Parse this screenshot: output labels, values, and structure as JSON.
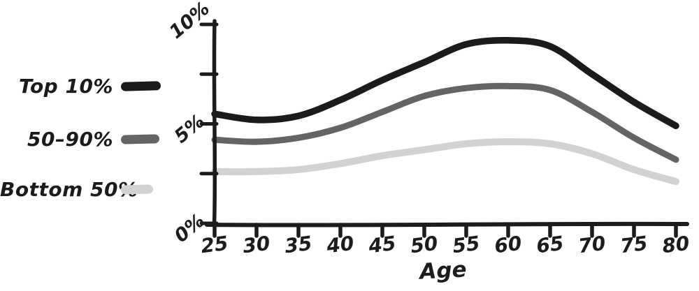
{
  "canvas": {
    "background": "#ffffff"
  },
  "legend": {
    "position": "left",
    "items": [
      {
        "label": "Top 10%",
        "color": "#1b1b1b"
      },
      {
        "label": "50–90%",
        "color": "#646464"
      },
      {
        "label": "Bottom 50%",
        "color": "#d2d2d2"
      }
    ]
  },
  "chart_data": {
    "type": "line",
    "title": "",
    "xlabel": "Age",
    "ylabel": "",
    "style": "hand-drawn sketch",
    "grid": false,
    "legend_position": "left",
    "xlim": [
      25,
      80
    ],
    "ylim": [
      0,
      10
    ],
    "x": [
      25,
      30,
      35,
      40,
      45,
      50,
      55,
      60,
      65,
      70,
      75,
      80
    ],
    "x_tick_labels": [
      "25",
      "30",
      "35",
      "40",
      "45",
      "50",
      "55",
      "60",
      "65",
      "70",
      "75",
      "80"
    ],
    "y_ticks": [
      {
        "value": 0,
        "label": "0%"
      },
      {
        "value": 2.5,
        "label": ""
      },
      {
        "value": 5,
        "label": "5%"
      },
      {
        "value": 7.5,
        "label": ""
      },
      {
        "value": 10,
        "label": "10%"
      }
    ],
    "axis_color": "#1c1c1c",
    "series": [
      {
        "name": "Top 10%",
        "color": "#1b1b1b",
        "width": 9.5,
        "values": [
          5.5,
          5.2,
          5.4,
          6.2,
          7.2,
          8.1,
          9.0,
          9.2,
          8.9,
          7.5,
          6.1,
          4.9
        ]
      },
      {
        "name": "50–90%",
        "color": "#646464",
        "width": 9,
        "values": [
          4.2,
          4.1,
          4.3,
          4.8,
          5.6,
          6.4,
          6.8,
          6.9,
          6.7,
          5.6,
          4.3,
          3.2
        ]
      },
      {
        "name": "Bottom 50%",
        "color": "#d2d2d2",
        "width": 10,
        "values": [
          2.6,
          2.6,
          2.7,
          3.0,
          3.4,
          3.7,
          4.0,
          4.1,
          4.0,
          3.5,
          2.7,
          2.1
        ]
      }
    ]
  }
}
